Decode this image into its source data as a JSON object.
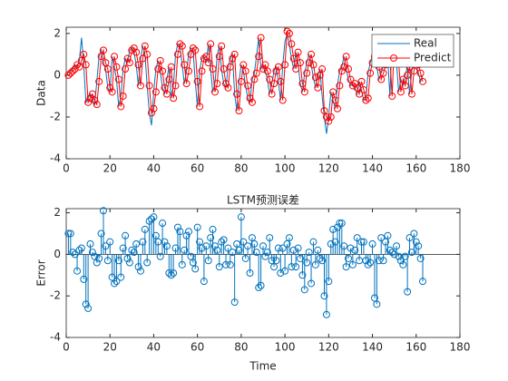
{
  "chart_data": [
    {
      "type": "line",
      "ylabel": "Data",
      "xlim": [
        0,
        180
      ],
      "ylim": [
        -4,
        2.3
      ],
      "xticks": [
        0,
        20,
        40,
        60,
        80,
        100,
        120,
        140,
        160,
        180
      ],
      "yticks": [
        -4,
        -2,
        0,
        2
      ],
      "legend": "upper right",
      "x": [
        1,
        2,
        3,
        4,
        5,
        6,
        7,
        8,
        9,
        10,
        11,
        12,
        13,
        14,
        15,
        16,
        17,
        18,
        19,
        20,
        21,
        22,
        23,
        24,
        25,
        26,
        27,
        28,
        29,
        30,
        31,
        32,
        33,
        34,
        35,
        36,
        37,
        38,
        39,
        40,
        41,
        42,
        43,
        44,
        45,
        46,
        47,
        48,
        49,
        50,
        51,
        52,
        53,
        54,
        55,
        56,
        57,
        58,
        59,
        60,
        61,
        62,
        63,
        64,
        65,
        66,
        67,
        68,
        69,
        70,
        71,
        72,
        73,
        74,
        75,
        76,
        77,
        78,
        79,
        80,
        81,
        82,
        83,
        84,
        85,
        86,
        87,
        88,
        89,
        90,
        91,
        92,
        93,
        94,
        95,
        96,
        97,
        98,
        99,
        100,
        101,
        102,
        103,
        104,
        105,
        106,
        107,
        108,
        109,
        110,
        111,
        112,
        113,
        114,
        115,
        116,
        117,
        118,
        119,
        120,
        121,
        122,
        123,
        124,
        125,
        126,
        127,
        128,
        129,
        130,
        131,
        132,
        133,
        134,
        135,
        136,
        137,
        138,
        139,
        140,
        141,
        142,
        143,
        144,
        145,
        146,
        147,
        148,
        149,
        150,
        151,
        152,
        153,
        154,
        155,
        156,
        157,
        158,
        159,
        160,
        161,
        162,
        163
      ],
      "series": [
        {
          "name": "Real",
          "color": "#0072bd",
          "marker": "none",
          "values": [
            0.1,
            0.2,
            0.3,
            0.5,
            0.4,
            0.7,
            1.8,
            0.5,
            -1.3,
            -1.1,
            -0.9,
            -1.2,
            -1.4,
            -0.3,
            0.9,
            1.2,
            0.6,
            0.3,
            -0.6,
            -0.8,
            0.9,
            0.4,
            -0.2,
            -1.5,
            -1.0,
            0.3,
            0.8,
            0.6,
            1.2,
            1.3,
            1.1,
            0.5,
            -0.5,
            0.8,
            1.4,
            1.0,
            -0.5,
            -1.8,
            -2.4,
            -0.8,
            0.3,
            0.7,
            0.2,
            -0.6,
            -0.9,
            -0.2,
            0.4,
            -1.1,
            -0.5,
            1.0,
            1.5,
            1.4,
            0.5,
            -0.4,
            0.2,
            1.0,
            1.3,
            1.2,
            -0.3,
            -1.5,
            0.2,
            0.8,
            0.9,
            0.6,
            1.5,
            0.3,
            -0.8,
            -0.4,
            0.9,
            1.4,
            0.3,
            -0.4,
            -0.6,
            0.4,
            0.8,
            1.0,
            -0.9,
            -1.7,
            -0.3,
            0.5,
            0.2,
            -0.5,
            -1.1,
            -1.3,
            -0.2,
            0.1,
            0.9,
            1.8,
            0.3,
            0.5,
            0.2,
            -0.2,
            -0.9,
            -0.4,
            0.2,
            0.4,
            -0.3,
            -1.2,
            0.5,
            1.6,
            2.0,
            1.5,
            0.8,
            0.3,
            1.1,
            0.6,
            -0.4,
            -0.8,
            0.1,
            0.6,
            1.0,
            0.5,
            -0.1,
            -0.6,
            0.0,
            0.3,
            -1.0,
            -2.0,
            -2.8,
            -2.0,
            -0.8,
            -1.2,
            -1.6,
            -0.5,
            0.2,
            0.4,
            0.9,
            0.3,
            -0.2,
            -0.5,
            -0.4,
            -0.6,
            -0.9,
            -0.3,
            -0.7,
            -1.2,
            -1.1,
            0.1,
            0.6,
            0.9,
            1.0,
            0.4,
            -0.2,
            0.1,
            0.5,
            1.1,
            0.8,
            -1.0,
            1.8,
            1.0,
            0.6,
            -0.8,
            -0.2,
            -0.5,
            0.0,
            0.4,
            -0.9,
            0.2,
            0.8,
            0.5,
            0.1,
            -0.3,
            0.0
          ]
        },
        {
          "name": "Predict",
          "color": "#ff0000",
          "marker": "o",
          "values": [
            0.0,
            0.1,
            0.2,
            0.3,
            0.5,
            0.4,
            0.7,
            1.0,
            0.5,
            -1.3,
            -1.1,
            -0.9,
            -1.2,
            -1.4,
            -0.3,
            0.9,
            1.2,
            0.6,
            0.3,
            -0.6,
            -0.8,
            0.9,
            0.4,
            -0.2,
            -1.5,
            -1.0,
            0.3,
            0.8,
            0.6,
            1.2,
            1.3,
            1.1,
            0.5,
            -0.5,
            0.8,
            1.4,
            1.0,
            -0.5,
            -1.8,
            -1.6,
            -0.8,
            0.3,
            0.7,
            0.2,
            -0.6,
            -0.9,
            -0.2,
            0.4,
            -1.1,
            -0.5,
            1.0,
            1.5,
            1.4,
            0.5,
            -0.4,
            0.2,
            1.0,
            1.3,
            1.2,
            -0.3,
            -1.5,
            0.2,
            0.8,
            0.9,
            0.6,
            1.5,
            0.3,
            -0.8,
            -0.4,
            0.9,
            1.4,
            0.3,
            -0.4,
            -0.6,
            0.4,
            0.8,
            1.0,
            -0.9,
            -1.7,
            -0.3,
            0.5,
            0.2,
            -0.5,
            -1.1,
            -1.3,
            -0.2,
            0.1,
            0.9,
            1.8,
            0.3,
            0.5,
            0.2,
            -0.2,
            -0.9,
            -0.4,
            0.2,
            0.4,
            -0.3,
            -1.2,
            0.5,
            2.1,
            2.0,
            1.5,
            0.8,
            0.3,
            1.1,
            0.6,
            -0.4,
            -0.8,
            0.1,
            0.6,
            1.0,
            0.5,
            -0.1,
            -0.6,
            0.0,
            0.3,
            -1.7,
            -2.0,
            -2.2,
            -2.0,
            -0.8,
            -1.2,
            -1.6,
            -0.5,
            0.2,
            0.4,
            0.9,
            0.3,
            -0.2,
            -0.5,
            -0.4,
            -0.6,
            -0.9,
            -0.3,
            -0.7,
            -1.2,
            -1.1,
            0.1,
            0.6,
            0.9,
            1.0,
            0.4,
            -0.2,
            0.1,
            0.5,
            1.1,
            0.8,
            -1.0,
            1.6,
            1.0,
            0.6,
            -0.8,
            -0.2,
            -0.5,
            0.0,
            0.4,
            -0.9,
            0.2,
            0.8,
            0.5,
            0.1,
            -0.3
          ]
        }
      ]
    },
    {
      "type": "stem",
      "title": "LSTM预测误差",
      "xlabel": "Time",
      "ylabel": "Error",
      "color": "#0072bd",
      "xlim": [
        0,
        180
      ],
      "ylim": [
        -4,
        2.2
      ],
      "xticks": [
        0,
        20,
        40,
        60,
        80,
        100,
        120,
        140,
        160,
        180
      ],
      "yticks": [
        -4,
        -2,
        0,
        2
      ],
      "x": [
        1,
        2,
        3,
        4,
        5,
        6,
        7,
        8,
        9,
        10,
        11,
        12,
        13,
        14,
        15,
        16,
        17,
        18,
        19,
        20,
        21,
        22,
        23,
        24,
        25,
        26,
        27,
        28,
        29,
        30,
        31,
        32,
        33,
        34,
        35,
        36,
        37,
        38,
        39,
        40,
        41,
        42,
        43,
        44,
        45,
        46,
        47,
        48,
        49,
        50,
        51,
        52,
        53,
        54,
        55,
        56,
        57,
        58,
        59,
        60,
        61,
        62,
        63,
        64,
        65,
        66,
        67,
        68,
        69,
        70,
        71,
        72,
        73,
        74,
        75,
        76,
        77,
        78,
        79,
        80,
        81,
        82,
        83,
        84,
        85,
        86,
        87,
        88,
        89,
        90,
        91,
        92,
        93,
        94,
        95,
        96,
        97,
        98,
        99,
        100,
        101,
        102,
        103,
        104,
        105,
        106,
        107,
        108,
        109,
        110,
        111,
        112,
        113,
        114,
        115,
        116,
        117,
        118,
        119,
        120,
        121,
        122,
        123,
        124,
        125,
        126,
        127,
        128,
        129,
        130,
        131,
        132,
        133,
        134,
        135,
        136,
        137,
        138,
        139,
        140,
        141,
        142,
        143,
        144,
        145,
        146,
        147,
        148,
        149,
        150,
        151,
        152,
        153,
        154,
        155,
        156,
        157,
        158,
        159,
        160,
        161,
        162,
        163
      ],
      "values": [
        1.0,
        1.0,
        0.1,
        0.0,
        -0.8,
        0.2,
        0.3,
        -1.2,
        -2.4,
        -2.6,
        0.5,
        0.1,
        -0.1,
        -0.4,
        -0.2,
        1.0,
        2.1,
        0.4,
        -0.3,
        0.6,
        -1.1,
        -1.4,
        -1.3,
        -0.3,
        -1.1,
        0.3,
        0.9,
        -0.2,
        -0.4,
        0.2,
        0.1,
        0.5,
        -0.6,
        -0.8,
        0.6,
        1.2,
        -0.4,
        1.6,
        1.7,
        1.8,
        0.9,
        0.6,
        -0.1,
        1.5,
        0.6,
        0.4,
        -0.9,
        -1.0,
        -0.9,
        0.3,
        1.3,
        1.1,
        -0.5,
        0.2,
        0.9,
        1.1,
        -0.1,
        -0.4,
        -0.7,
        1.3,
        0.6,
        0.3,
        -1.3,
        0.4,
        -0.3,
        0.8,
        1.2,
        0.4,
        0.2,
        -0.6,
        0.6,
        0.7,
        -0.5,
        0.3,
        -0.5,
        0.1,
        -2.3,
        0.5,
        0.2,
        1.8,
        0.6,
        -0.2,
        0.4,
        -0.9,
        0.8,
        0.5,
        0.1,
        -1.6,
        -1.5,
        0.4,
        -0.1,
        0.1,
        0.8,
        -0.3,
        -0.6,
        -0.3,
        0.3,
        -0.9,
        0.3,
        -0.8,
        0.5,
        0.8,
        -0.6,
        0.2,
        -0.6,
        0.3,
        -0.2,
        -1.0,
        -1.7,
        -0.4,
        0.1,
        -1.4,
        0.6,
        -0.5,
        0.2,
        -0.2,
        -0.3,
        -2.0,
        -2.9,
        -1.3,
        0.5,
        1.2,
        0.6,
        1.3,
        1.5,
        1.5,
        0.4,
        -0.6,
        -0.2,
        0.3,
        -0.5,
        0.2,
        0.8,
        -0.3,
        0.6,
        0.6,
        -0.3,
        -0.5,
        -0.4,
        0.5,
        -2.1,
        -2.4,
        -0.3,
        0.8,
        -0.3,
        0.6,
        0.9,
        0.2,
        0.1,
        0.0,
        0.4,
        -0.1,
        -0.3,
        -0.5,
        -0.1,
        -1.8,
        0.8,
        0.1,
        1.0,
        0.6,
        0.4,
        -0.2,
        -1.3
      ]
    }
  ]
}
